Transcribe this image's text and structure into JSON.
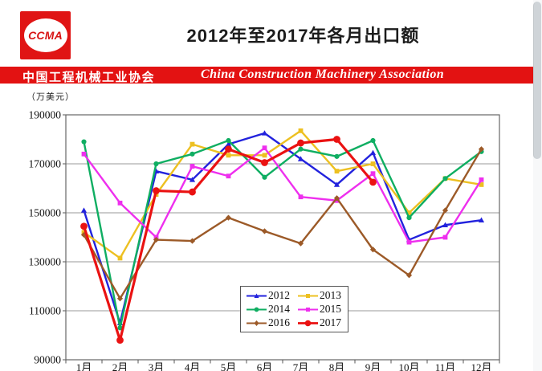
{
  "header": {
    "logo_text": "CCMA",
    "title": "2012年至2017年各月出口额",
    "banner_cn": "中国工程机械工业协会",
    "banner_en": "China Construction Machinery Association",
    "banner_color": "#e31212"
  },
  "chart_data": {
    "type": "line",
    "title": "2012年至2017年各月出口额",
    "unit_label": "（万美元）",
    "xlabel": "",
    "ylabel": "万美元",
    "categories": [
      "1月",
      "2月",
      "3月",
      "4月",
      "5月",
      "6月",
      "7月",
      "8月",
      "9月",
      "10月",
      "11月",
      "12月"
    ],
    "ylim": [
      90000,
      190000
    ],
    "yticks": [
      90000,
      110000,
      130000,
      150000,
      170000,
      190000
    ],
    "grid": true,
    "legend_position": "inside-bottom-center",
    "series": [
      {
        "name": "2012",
        "color": "#2222dd",
        "marker": "triangle",
        "line_width": 2.4,
        "values": [
          151000,
          105000,
          167000,
          163500,
          178000,
          182500,
          172000,
          161500,
          174500,
          139000,
          145000,
          147000
        ]
      },
      {
        "name": "2013",
        "color": "#edc021",
        "marker": "square",
        "line_width": 2.4,
        "values": [
          142000,
          131500,
          157500,
          178000,
          173500,
          173500,
          183500,
          167000,
          170000,
          150000,
          164000,
          161500
        ]
      },
      {
        "name": "2014",
        "color": "#0fae62",
        "marker": "circle",
        "line_width": 2.4,
        "values": [
          179000,
          103000,
          170000,
          174000,
          179500,
          164500,
          176000,
          173000,
          179500,
          148000,
          164000,
          175000
        ]
      },
      {
        "name": "2015",
        "color": "#ee2fee",
        "marker": "square",
        "line_width": 2.4,
        "values": [
          174000,
          154000,
          140000,
          169000,
          165000,
          176500,
          156500,
          155000,
          166000,
          138000,
          140000,
          163500
        ]
      },
      {
        "name": "2016",
        "color": "#9c5a28",
        "marker": "diamond",
        "line_width": 2.4,
        "values": [
          141000,
          115000,
          139000,
          138500,
          148000,
          142500,
          137500,
          156000,
          135000,
          124500,
          151000,
          176000
        ]
      },
      {
        "name": "2017",
        "color": "#ea1212",
        "marker": "circle-large",
        "line_width": 3.2,
        "values": [
          144500,
          98000,
          159000,
          158500,
          176000,
          170500,
          178500,
          180000,
          162500,
          null,
          null,
          null
        ]
      }
    ]
  }
}
